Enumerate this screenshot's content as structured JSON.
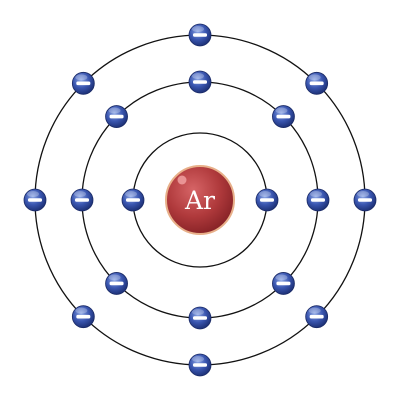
{
  "nucleus": {
    "symbol": "Ar",
    "color": "#b03a3c",
    "highlight": "#f0a0a0",
    "rim": "#e8b08a"
  },
  "electron_style": {
    "color": "#2f4aa0",
    "highlight": "#8ea8e6",
    "sign": "minus"
  },
  "shells": [
    {
      "name": "shell-1",
      "electron_count": 2,
      "start_angle_deg": 0
    },
    {
      "name": "shell-2",
      "electron_count": 8,
      "start_angle_deg": 0
    },
    {
      "name": "shell-3",
      "electron_count": 8,
      "start_angle_deg": 0
    }
  ]
}
